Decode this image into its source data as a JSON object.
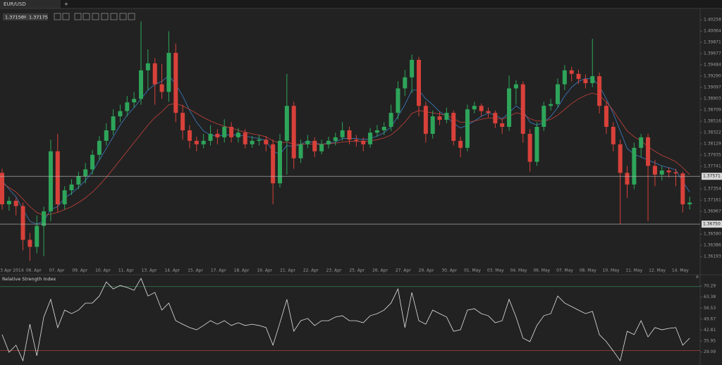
{
  "tab": {
    "title": "EUR/USD",
    "add": "+"
  },
  "toolbar": {
    "bid": 1.37156,
    "ask": 1.37175
  },
  "chart_data": [
    {
      "type": "candlestick",
      "up_color": "#2ea55a",
      "down_color": "#d8413a",
      "ylim": [
        1.36001,
        1.40452
      ],
      "yticks": [
        1.40258,
        1.40064,
        1.39871,
        1.39677,
        1.39484,
        {
          "value": 1.3929,
          "label": "1.39290"
        },
        1.39097,
        1.38903,
        1.38709,
        1.38516,
        1.38322,
        1.38129,
        1.37935,
        1.37741,
        1.37354,
        1.37161,
        1.36967,
        {
          "value": 1.3658,
          "label": "1.36580"
        },
        1.36386,
        1.36193
      ],
      "hlines": [
        1.37571,
        {
          "value": 1.3675,
          "label": "1.36750"
        }
      ],
      "xlabels": [
        "03 Apr 2014",
        "06. Apr",
        "07. Apr",
        "09. Apr",
        "10. Apr",
        "11. Apr",
        "13. Apr",
        "14. Apr",
        "15. Apr",
        "17. Apr",
        "18. Apr",
        "19. Apr",
        "21. Apr",
        "22. Apr",
        "23. Apr",
        "25. Apr",
        "26. Apr",
        "27. Apr",
        "29. Apr",
        "30. Apr",
        "01. May",
        "03. May",
        "04. May",
        "06. May",
        "07. May",
        "08. May",
        "10. May",
        "11. May",
        "12. May",
        "14. May"
      ],
      "ohlc": [
        [
          1.3763,
          1.377,
          1.37,
          1.3709
        ],
        [
          1.3709,
          1.3722,
          1.3698,
          1.3715
        ],
        [
          1.3715,
          1.372,
          1.369,
          1.3706
        ],
        [
          1.3706,
          1.3712,
          1.363,
          1.3648
        ],
        [
          1.3648,
          1.366,
          1.3612,
          1.3636
        ],
        [
          1.3636,
          1.369,
          1.3625,
          1.3672
        ],
        [
          1.3672,
          1.3705,
          1.362,
          1.3697
        ],
        [
          1.3697,
          1.382,
          1.368,
          1.38
        ],
        [
          1.38,
          1.383,
          1.3695,
          1.3709
        ],
        [
          1.3709,
          1.374,
          1.37,
          1.3733
        ],
        [
          1.3733,
          1.3752,
          1.3725,
          1.3743
        ],
        [
          1.3743,
          1.3765,
          1.3735,
          1.3757
        ],
        [
          1.3757,
          1.378,
          1.3745,
          1.3769
        ],
        [
          1.3769,
          1.3802,
          1.376,
          1.3794
        ],
        [
          1.3794,
          1.3826,
          1.3785,
          1.3818
        ],
        [
          1.3818,
          1.3848,
          1.381,
          1.3836
        ],
        [
          1.3836,
          1.3872,
          1.3828,
          1.386
        ],
        [
          1.386,
          1.388,
          1.385,
          1.3869
        ],
        [
          1.3869,
          1.3895,
          1.386,
          1.3884
        ],
        [
          1.3884,
          1.3902,
          1.3875,
          1.389
        ],
        [
          1.389,
          1.4023,
          1.388,
          1.3939
        ],
        [
          1.3939,
          1.3975,
          1.3905,
          1.3951
        ],
        [
          1.3951,
          1.396,
          1.388,
          1.3915
        ],
        [
          1.3915,
          1.395,
          1.389,
          1.3902
        ],
        [
          1.3902,
          1.4006,
          1.3885,
          1.3969
        ],
        [
          1.3969,
          1.3985,
          1.385,
          1.3866
        ],
        [
          1.3866,
          1.388,
          1.382,
          1.3836
        ],
        [
          1.3836,
          1.3845,
          1.3805,
          1.3818
        ],
        [
          1.3818,
          1.3825,
          1.38,
          1.3812
        ],
        [
          1.3812,
          1.383,
          1.3805,
          1.3818
        ],
        [
          1.3818,
          1.3845,
          1.381,
          1.383
        ],
        [
          1.383,
          1.3838,
          1.3812,
          1.3824
        ],
        [
          1.3824,
          1.3855,
          1.3815,
          1.3842
        ],
        [
          1.3842,
          1.385,
          1.3815,
          1.3824
        ],
        [
          1.3824,
          1.384,
          1.3815,
          1.3832
        ],
        [
          1.3832,
          1.3838,
          1.3805,
          1.3812
        ],
        [
          1.3812,
          1.3826,
          1.3806,
          1.3818
        ],
        [
          1.3818,
          1.3828,
          1.381,
          1.382
        ],
        [
          1.382,
          1.3826,
          1.38,
          1.3812
        ],
        [
          1.3812,
          1.382,
          1.3709,
          1.3745
        ],
        [
          1.3745,
          1.383,
          1.3738,
          1.3818
        ],
        [
          1.3818,
          1.3933,
          1.376,
          1.3878
        ],
        [
          1.3878,
          1.3885,
          1.377,
          1.3788
        ],
        [
          1.3788,
          1.382,
          1.378,
          1.3812
        ],
        [
          1.3812,
          1.3828,
          1.3805,
          1.3818
        ],
        [
          1.3818,
          1.3824,
          1.379,
          1.38
        ],
        [
          1.38,
          1.382,
          1.3795,
          1.3812
        ],
        [
          1.3812,
          1.3825,
          1.3805,
          1.3818
        ],
        [
          1.3818,
          1.3832,
          1.381,
          1.3824
        ],
        [
          1.3824,
          1.385,
          1.3818,
          1.3836
        ],
        [
          1.3836,
          1.3842,
          1.3812,
          1.382
        ],
        [
          1.382,
          1.3828,
          1.3808,
          1.3818
        ],
        [
          1.3818,
          1.3824,
          1.38,
          1.3812
        ],
        [
          1.3812,
          1.384,
          1.3806,
          1.3832
        ],
        [
          1.3832,
          1.3845,
          1.3825,
          1.3836
        ],
        [
          1.3836,
          1.385,
          1.3828,
          1.3842
        ],
        [
          1.3842,
          1.388,
          1.3835,
          1.3866
        ],
        [
          1.3866,
          1.392,
          1.3855,
          1.3908
        ],
        [
          1.3908,
          1.394,
          1.3895,
          1.3927
        ],
        [
          1.3927,
          1.3966,
          1.39,
          1.3957
        ],
        [
          1.3957,
          1.3962,
          1.386,
          1.3878
        ],
        [
          1.3878,
          1.3885,
          1.3815,
          1.383
        ],
        [
          1.383,
          1.387,
          1.3822,
          1.386
        ],
        [
          1.386,
          1.3868,
          1.3845,
          1.3854
        ],
        [
          1.3854,
          1.3875,
          1.3848,
          1.3866
        ],
        [
          1.3866,
          1.387,
          1.381,
          1.3818
        ],
        [
          1.3818,
          1.3825,
          1.379,
          1.3806
        ],
        [
          1.3806,
          1.388,
          1.38,
          1.3872
        ],
        [
          1.3872,
          1.3885,
          1.3865,
          1.3878
        ],
        [
          1.3878,
          1.3882,
          1.386,
          1.3869
        ],
        [
          1.3869,
          1.3875,
          1.3858,
          1.3866
        ],
        [
          1.3866,
          1.387,
          1.384,
          1.3848
        ],
        [
          1.3848,
          1.3855,
          1.383,
          1.3842
        ],
        [
          1.3842,
          1.393,
          1.3835,
          1.3908
        ],
        [
          1.3908,
          1.3922,
          1.388,
          1.3915
        ],
        [
          1.3915,
          1.392,
          1.3815,
          1.383
        ],
        [
          1.383,
          1.3838,
          1.3765,
          1.3782
        ],
        [
          1.3782,
          1.385,
          1.3775,
          1.3842
        ],
        [
          1.3842,
          1.3885,
          1.3835,
          1.3878
        ],
        [
          1.3878,
          1.389,
          1.387,
          1.3881
        ],
        [
          1.3881,
          1.3925,
          1.3875,
          1.3915
        ],
        [
          1.3915,
          1.3948,
          1.3905,
          1.3939
        ],
        [
          1.3939,
          1.3945,
          1.392,
          1.3933
        ],
        [
          1.3933,
          1.394,
          1.3915,
          1.3924
        ],
        [
          1.3924,
          1.3932,
          1.3908,
          1.3917
        ],
        [
          1.3917,
          1.3993,
          1.391,
          1.3929
        ],
        [
          1.3929,
          1.3935,
          1.3865,
          1.3878
        ],
        [
          1.3878,
          1.3885,
          1.383,
          1.3842
        ],
        [
          1.3842,
          1.385,
          1.38,
          1.3812
        ],
        [
          1.3812,
          1.382,
          1.3675,
          1.3763
        ],
        [
          1.3763,
          1.3775,
          1.372,
          1.3743
        ],
        [
          1.3743,
          1.3815,
          1.3735,
          1.3806
        ],
        [
          1.3806,
          1.383,
          1.379,
          1.3824
        ],
        [
          1.3824,
          1.383,
          1.368,
          1.3775
        ],
        [
          1.3775,
          1.3785,
          1.374,
          1.376
        ],
        [
          1.376,
          1.3775,
          1.375,
          1.3767
        ],
        [
          1.3767,
          1.3772,
          1.3755,
          1.3764
        ],
        [
          1.3764,
          1.377,
          1.374,
          1.3762
        ],
        [
          1.3762,
          1.3765,
          1.3695,
          1.3709
        ],
        [
          1.3709,
          1.3722,
          1.37,
          1.3712
        ]
      ],
      "overlays": [
        {
          "color": "#3b7fc4",
          "values": [
            1.375,
            1.3735,
            1.3722,
            1.37,
            1.368,
            1.3675,
            1.368,
            1.37,
            1.3705,
            1.372,
            1.3728,
            1.3738,
            1.375,
            1.3765,
            1.3785,
            1.3805,
            1.3825,
            1.3845,
            1.3862,
            1.3875,
            1.389,
            1.3905,
            1.3915,
            1.392,
            1.393,
            1.3915,
            1.3895,
            1.387,
            1.385,
            1.3835,
            1.3828,
            1.3826,
            1.3828,
            1.3828,
            1.3828,
            1.3826,
            1.3824,
            1.3822,
            1.3818,
            1.38,
            1.3795,
            1.381,
            1.3808,
            1.3812,
            1.3818,
            1.3814,
            1.3812,
            1.3814,
            1.3816,
            1.3822,
            1.3822,
            1.3822,
            1.382,
            1.3822,
            1.3826,
            1.3832,
            1.3842,
            1.386,
            1.388,
            1.3905,
            1.3905,
            1.389,
            1.388,
            1.3868,
            1.386,
            1.3848,
            1.384,
            1.3845,
            1.3852,
            1.386,
            1.3866,
            1.3862,
            1.3856,
            1.3866,
            1.3878,
            1.387,
            1.385,
            1.3845,
            1.385,
            1.386,
            1.3875,
            1.3895,
            1.391,
            1.392,
            1.3925,
            1.3925,
            1.3912,
            1.389,
            1.3865,
            1.3835,
            1.3805,
            1.3795,
            1.379,
            1.3785,
            1.378,
            1.3775,
            1.3772,
            1.3768,
            1.3748,
            1.373
          ]
        },
        {
          "color": "#c4423a",
          "values": [
            1.3745,
            1.3738,
            1.373,
            1.3718,
            1.3705,
            1.3695,
            1.369,
            1.3692,
            1.3695,
            1.37,
            1.3705,
            1.3712,
            1.372,
            1.373,
            1.3742,
            1.3755,
            1.377,
            1.3785,
            1.38,
            1.3815,
            1.383,
            1.3845,
            1.3858,
            1.3868,
            1.388,
            1.3882,
            1.3878,
            1.3872,
            1.3865,
            1.3858,
            1.3852,
            1.3847,
            1.3843,
            1.384,
            1.3836,
            1.3833,
            1.383,
            1.3828,
            1.3825,
            1.3818,
            1.3814,
            1.3816,
            1.3812,
            1.3812,
            1.3813,
            1.3812,
            1.3812,
            1.3813,
            1.3814,
            1.3816,
            1.3817,
            1.3817,
            1.3817,
            1.3818,
            1.382,
            1.3823,
            1.3828,
            1.3838,
            1.385,
            1.3865,
            1.387,
            1.3868,
            1.3866,
            1.3864,
            1.3862,
            1.3856,
            1.385,
            1.385,
            1.3852,
            1.3855,
            1.3857,
            1.3857,
            1.3855,
            1.386,
            1.3866,
            1.3864,
            1.3856,
            1.3852,
            1.3852,
            1.3855,
            1.3862,
            1.3872,
            1.3882,
            1.389,
            1.3896,
            1.39,
            1.3896,
            1.3885,
            1.387,
            1.3852,
            1.3835,
            1.3825,
            1.3818,
            1.3808,
            1.38,
            1.3793,
            1.3788,
            1.3782,
            1.3772,
            1.376
          ]
        }
      ]
    },
    {
      "type": "line",
      "title": "Relative Strength Index",
      "color": "#e2e2e2",
      "ylim": [
        21.04,
        77.33
      ],
      "yticks": [
        70.29,
        63.38,
        56.53,
        49.67,
        42.81,
        35.95,
        29.09
      ],
      "levels": [
        {
          "value": 70,
          "color": "#2f6e4c"
        },
        {
          "value": 30,
          "color": "#a9413b"
        }
      ],
      "values": [
        40.0,
        29.0,
        33.4,
        23.7,
        46.5,
        26.8,
        51.0,
        62.0,
        44.4,
        55.3,
        53.1,
        55.3,
        59.7,
        59.7,
        64.1,
        72.9,
        68.5,
        70.7,
        69.4,
        67.7,
        75.1,
        64.1,
        66.3,
        55.3,
        59.7,
        48.7,
        46.5,
        44.4,
        43.0,
        45.7,
        48.7,
        46.5,
        48.7,
        45.7,
        47.4,
        45.7,
        46.5,
        45.7,
        44.4,
        33.4,
        47.4,
        62.0,
        42.1,
        48.7,
        50.1,
        45.7,
        48.7,
        48.7,
        51.0,
        51.8,
        48.7,
        48.7,
        47.4,
        51.8,
        53.1,
        55.3,
        59.7,
        68.5,
        44.4,
        66.3,
        48.7,
        46.5,
        55.3,
        53.1,
        51.0,
        42.1,
        43.0,
        55.3,
        56.2,
        53.1,
        51.8,
        47.4,
        48.7,
        62.0,
        51.0,
        37.8,
        35.6,
        45.7,
        51.8,
        53.1,
        64.1,
        59.7,
        57.5,
        55.3,
        53.1,
        54.5,
        40.0,
        35.6,
        29.8,
        23.7,
        42.1,
        40.0,
        48.7,
        38.6,
        44.4,
        43.0,
        43.9,
        44.4,
        33.4,
        37.8
      ]
    }
  ]
}
